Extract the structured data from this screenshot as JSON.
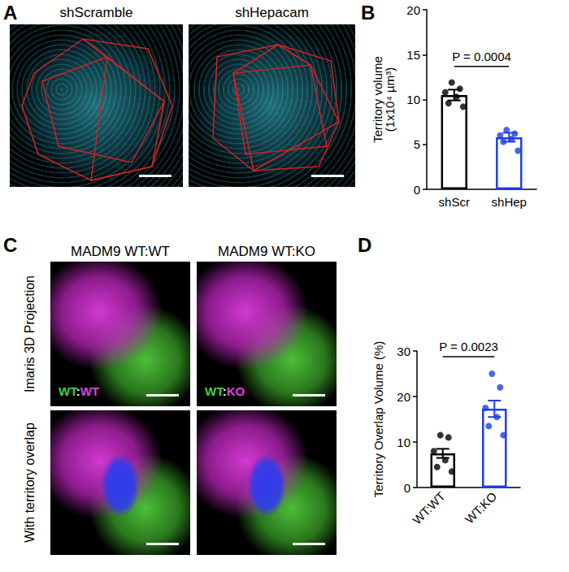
{
  "chart_data": [
    {
      "type": "bar",
      "panel": "B",
      "categories": [
        "shScr",
        "shHep"
      ],
      "values": [
        10.5,
        5.8
      ],
      "errors": [
        0.6,
        0.5
      ],
      "points": [
        [
          11.9,
          11.2,
          10.8,
          10.3,
          9.6,
          9.2
        ],
        [
          6.6,
          6.2,
          6.0,
          5.6,
          5.3,
          4.3
        ]
      ],
      "colors": [
        "#000000",
        "#1f3fe6"
      ],
      "ylabel": "Territory volume\n(1x10⁴ µm³)",
      "ylim": [
        0,
        20
      ],
      "yticks": [
        0,
        5,
        10,
        15,
        20
      ],
      "grid": false,
      "annotations": [
        {
          "text": "P = 0.0004"
        }
      ]
    },
    {
      "type": "bar",
      "panel": "D",
      "categories": [
        "WT:WT",
        "WT:KO"
      ],
      "values": [
        7.5,
        17.3
      ],
      "errors": [
        1.0,
        1.8
      ],
      "points": [
        [
          11.5,
          11.0,
          8.0,
          6.0,
          4.5,
          3.5
        ],
        [
          25.0,
          22.0,
          17.5,
          15.5,
          13.5,
          11.5
        ]
      ],
      "colors": [
        "#000000",
        "#1f3fe6"
      ],
      "ylabel": "Territory Overlap Volume (%)",
      "ylim": [
        0,
        30
      ],
      "yticks": [
        0,
        10,
        20,
        30
      ],
      "grid": false,
      "annotations": [
        {
          "text": "P = 0.0023"
        }
      ]
    }
  ],
  "image_panels": [
    {
      "panel": "A",
      "columns": [
        "shScramble",
        "shHepacam"
      ]
    },
    {
      "panel": "C",
      "columns": [
        "MADM9 WT:WT",
        "MADM9 WT:KO"
      ],
      "rows": [
        "Imaris 3D Projection",
        "With territory overlap"
      ],
      "overlay_labels": [
        "WT:WT",
        "WT:KO"
      ]
    }
  ]
}
